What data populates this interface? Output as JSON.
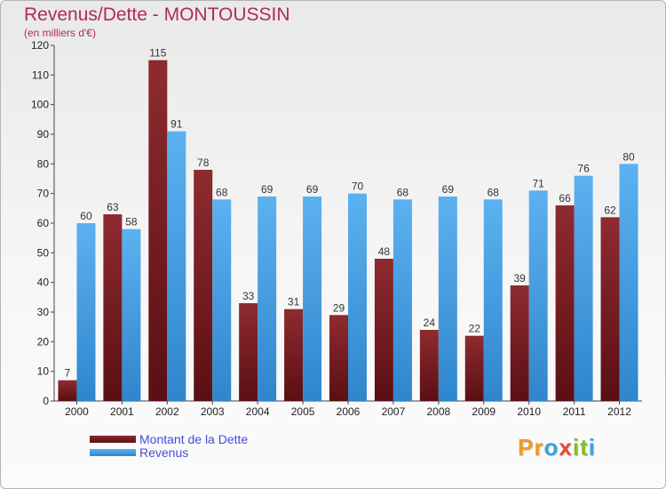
{
  "chart_data": {
    "type": "bar",
    "title": "Revenus/Dette - MONTOUSSIN",
    "subtitle": "(en milliers d'€)",
    "categories": [
      "2000",
      "2001",
      "2002",
      "2003",
      "2004",
      "2005",
      "2006",
      "2007",
      "2008",
      "2009",
      "2010",
      "2011",
      "2012"
    ],
    "series": [
      {
        "name": "Montant de la Dette",
        "color": "#7a1f24",
        "values": [
          7,
          63,
          115,
          78,
          33,
          31,
          29,
          48,
          24,
          22,
          39,
          66,
          62
        ]
      },
      {
        "name": "Revenus",
        "color": "#4aa1e6",
        "values": [
          60,
          58,
          91,
          68,
          69,
          69,
          70,
          68,
          69,
          68,
          71,
          76,
          80
        ]
      }
    ],
    "ylim": [
      0,
      120
    ],
    "yticks": [
      0,
      10,
      20,
      30,
      40,
      50,
      60,
      70,
      80,
      90,
      100,
      110,
      120
    ],
    "grid": false,
    "legend_position": "bottom-left"
  },
  "logo": {
    "letters": [
      "P",
      "r",
      "o",
      "x",
      "i",
      "t",
      "i"
    ],
    "colors": [
      "#f39a1f",
      "#f39a1f",
      "#3aa2e0",
      "#e8483a",
      "#7fbf2a",
      "#7fbf2a",
      "#3aa2e0"
    ]
  }
}
